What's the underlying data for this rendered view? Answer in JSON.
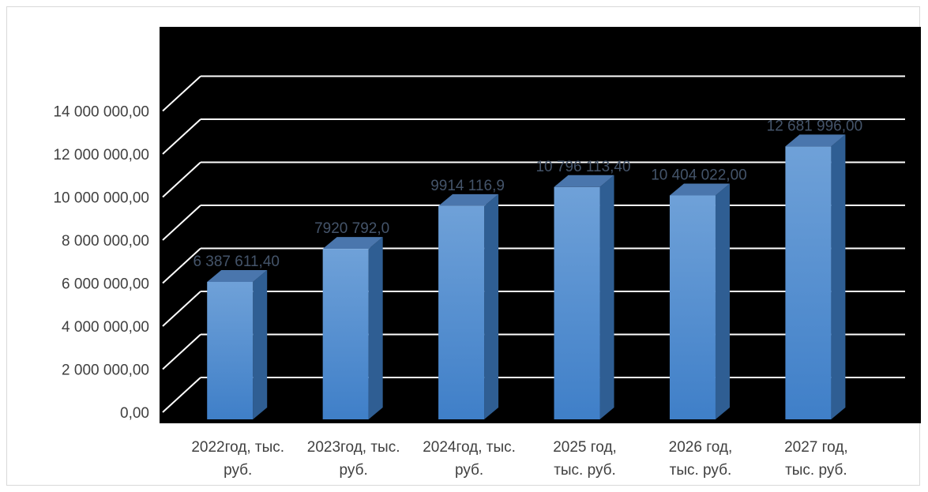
{
  "chart_data": {
    "type": "bar",
    "title": "",
    "xlabel": "",
    "ylabel": "",
    "categories": [
      [
        "2022год, тыс.",
        "руб."
      ],
      [
        "2023год, тыс.",
        "руб."
      ],
      [
        "2024год, тыс.",
        "руб."
      ],
      [
        "2025 год,",
        "тыс. руб."
      ],
      [
        "2026 год,",
        "тыс. руб."
      ],
      [
        "2027 год,",
        "тыс. руб."
      ]
    ],
    "values": [
      6387611.4,
      7920792.0,
      9914116.9,
      10796113.4,
      10404022.0,
      12681996.0
    ],
    "data_labels": [
      "6 387 611,40",
      "7920 792,0",
      "9914 116,9",
      "10 796 113,40",
      "10 404 022,00",
      "12 681 996,00"
    ],
    "ylim": [
      0,
      14000000
    ],
    "ytick_values": [
      0,
      2000000,
      4000000,
      6000000,
      8000000,
      10000000,
      12000000,
      14000000
    ],
    "ytick_labels": [
      "0,00",
      "2 000 000,00",
      "4 000 000,00",
      "6 000 000,00",
      "8 000 000,00",
      "10 000 000,00",
      "12 000 000,00",
      "14 000 000,00"
    ],
    "grid": true,
    "legend": "none",
    "style": "3d-column",
    "colors": {
      "plot_background": "#000000",
      "gridline": "#ffffff",
      "bar_front_top": "#6fa1d8",
      "bar_front_bottom": "#3f7fc8",
      "bar_side": "#2f5e93",
      "bar_top": "#4a76ad",
      "tick_label": "#404040",
      "data_label": "#44546a"
    }
  }
}
